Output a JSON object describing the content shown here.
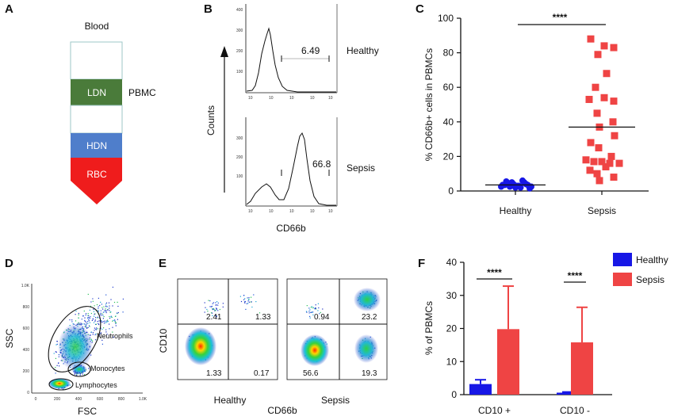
{
  "colors": {
    "ldn": "#4a7b3a",
    "hdn": "#4f7ecb",
    "rbc": "#ef1c1c",
    "healthy": "#1717e6",
    "sepsis": "#ef4444"
  },
  "panels": {
    "A": {
      "letter": "A",
      "title": "Blood",
      "layers": [
        "LDN",
        "HDN",
        "RBC"
      ],
      "pbmc_label": "PBMC"
    },
    "B": {
      "letter": "B",
      "ylabel": "Counts",
      "xlabel": "CD66b",
      "histograms": [
        {
          "label": "Healthy",
          "gate_value": "6.49"
        },
        {
          "label": "Sepsis",
          "gate_value": "66.8"
        }
      ]
    },
    "C": {
      "letter": "C"
    },
    "D": {
      "letter": "D",
      "xlabel": "FSC",
      "ylabel": "SSC",
      "gates": [
        "Neutrophils",
        "Monocytes",
        "Lymphocytes"
      ],
      "yticks": [
        "1.0K",
        "800",
        "600",
        "400",
        "200",
        "0"
      ],
      "xticks": [
        "0",
        "200",
        "400",
        "600",
        "800",
        "1.0K"
      ]
    },
    "E": {
      "letter": "E",
      "ylabel": "CD10",
      "xlabel": "CD66b",
      "plots": [
        {
          "label": "Healthy",
          "quadrants": [
            "2.41",
            "1.33",
            "1.33",
            "0.17"
          ]
        },
        {
          "label": "Sepsis",
          "quadrants": [
            "0.94",
            "23.2",
            "56.6",
            "19.3"
          ]
        }
      ]
    },
    "F": {
      "letter": "F"
    }
  },
  "chart_data": [
    {
      "type": "scatter",
      "panel": "C",
      "ylabel": "% CD66b+ cells in PBMCs",
      "ylim": [
        0,
        100
      ],
      "yticks": [
        0,
        20,
        40,
        60,
        80,
        100
      ],
      "categories": [
        "Healthy",
        "Sepsis"
      ],
      "significance": "****",
      "series": [
        {
          "name": "Healthy",
          "marker": "circle",
          "values": [
            2.5,
            3.5,
            4.5,
            5,
            2,
            3,
            6,
            4,
            1.5,
            3.5,
            5.5,
            2.5,
            4,
            3,
            2,
            5,
            3.5,
            2.5
          ],
          "mean": 3.5
        },
        {
          "name": "Sepsis",
          "marker": "square",
          "values": [
            88,
            84,
            83,
            79,
            68,
            60,
            53,
            54,
            52,
            45,
            40,
            37,
            32,
            28,
            25,
            20,
            18,
            17,
            17,
            16,
            16,
            14,
            12,
            10,
            8,
            6
          ],
          "mean": 37
        }
      ]
    },
    {
      "type": "bar",
      "panel": "F",
      "ylabel": "% of PBMCs",
      "ylim": [
        0,
        40
      ],
      "yticks": [
        0,
        10,
        20,
        30,
        40
      ],
      "categories": [
        "CD10 +",
        "CD10 -"
      ],
      "significance": [
        "****",
        "****"
      ],
      "series": [
        {
          "name": "Healthy",
          "values": [
            3.2,
            0.6
          ],
          "error": [
            1.3,
            0.2
          ]
        },
        {
          "name": "Sepsis",
          "values": [
            19.8,
            15.8
          ],
          "error": [
            13.0,
            10.6
          ]
        }
      ]
    }
  ]
}
